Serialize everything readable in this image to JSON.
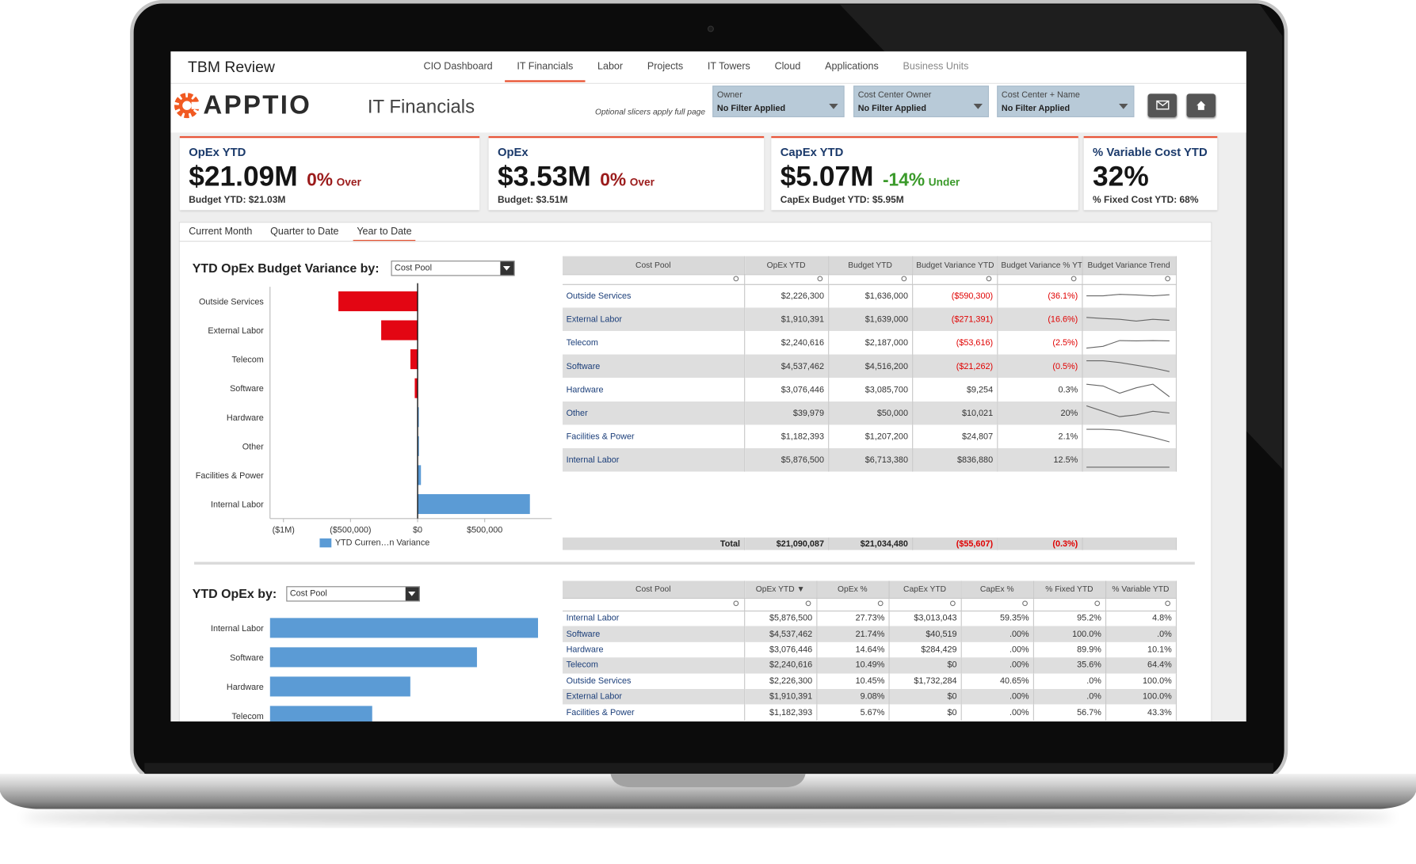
{
  "header": {
    "title": "TBM Review",
    "nav": [
      "CIO Dashboard",
      "IT Financials",
      "Labor",
      "Projects",
      "IT Towers",
      "Cloud",
      "Applications",
      "Business Units"
    ],
    "active_nav": 1
  },
  "branding": {
    "logo": "APPTIO",
    "page_title": "IT Financials"
  },
  "slicer_note": "Optional slicers apply full page",
  "slicers": [
    {
      "label": "Owner",
      "value": "No Filter Applied"
    },
    {
      "label": "Cost Center Owner",
      "value": "No Filter Applied"
    },
    {
      "label": "Cost Center + Name",
      "value": "No Filter Applied"
    }
  ],
  "kpis": [
    {
      "title": "OpEx YTD",
      "value": "$21.09M",
      "change": "0%",
      "change_label": "Over",
      "change_color": "#9b1b1b",
      "sub": "Budget YTD: $21.03M"
    },
    {
      "title": "OpEx",
      "value": "$3.53M",
      "change": "0%",
      "change_label": "Over",
      "change_color": "#9b1b1b",
      "sub": "Budget: $3.51M"
    },
    {
      "title": "CapEx YTD",
      "value": "$5.07M",
      "change": "-14%",
      "change_label": "Under",
      "change_color": "#3a9a2a",
      "sub": "CapEx Budget YTD: $5.95M"
    },
    {
      "title": "% Variable Cost YTD",
      "value": "32%",
      "sub": "% Fixed Cost YTD: 68%"
    }
  ],
  "tabs": {
    "items": [
      "Current Month",
      "Quarter to Date",
      "Year to Date"
    ],
    "active": 2
  },
  "variance_section": {
    "chart": {
      "type": "bar",
      "title": "YTD OpEx Budget Variance by:",
      "dropdown": "Cost Pool",
      "categories": [
        "Outside Services",
        "External Labor",
        "Telecom",
        "Software",
        "Hardware",
        "Other",
        "Facilities & Power",
        "Internal Labor"
      ],
      "series": [
        {
          "name": "YTD Curren…n Variance",
          "color": "#5b9bd5",
          "negative_color": "#e30613",
          "values": [
            -590300,
            -271391,
            -53616,
            -21262,
            9254,
            10021,
            24807,
            836880
          ]
        }
      ],
      "xlim": [
        -1100000,
        1000000
      ],
      "xticks": [
        {
          "value": -1000000,
          "label": "($1M)"
        },
        {
          "value": -500000,
          "label": "($500,000)"
        },
        {
          "value": 0,
          "label": "$0"
        },
        {
          "value": 500000,
          "label": "$500,000"
        }
      ]
    },
    "table": {
      "columns": [
        "Cost Pool",
        "OpEx YTD",
        "Budget YTD",
        "Budget Variance YTD ▲",
        "Budget Variance % YTD",
        "Budget Variance Trend"
      ],
      "rows": [
        [
          "Outside Services",
          "$2,226,300",
          "$1,636,000",
          "($590,300)",
          "(36.1%)"
        ],
        [
          "External Labor",
          "$1,910,391",
          "$1,639,000",
          "($271,391)",
          "(16.6%)"
        ],
        [
          "Telecom",
          "$2,240,616",
          "$2,187,000",
          "($53,616)",
          "(2.5%)"
        ],
        [
          "Software",
          "$4,537,462",
          "$4,516,200",
          "($21,262)",
          "(0.5%)"
        ],
        [
          "Hardware",
          "$3,076,446",
          "$3,085,700",
          "$9,254",
          "0.3%"
        ],
        [
          "Other",
          "$39,979",
          "$50,000",
          "$10,021",
          "20%"
        ],
        [
          "Facilities & Power",
          "$1,182,393",
          "$1,207,200",
          "$24,807",
          "2.1%"
        ],
        [
          "Internal Labor",
          "$5,876,500",
          "$6,713,380",
          "$836,880",
          "12.5%"
        ]
      ],
      "trends": [
        [
          5,
          5,
          5.8,
          5.5,
          5,
          5.6
        ],
        [
          6,
          5.4,
          5,
          4,
          5,
          4.4
        ],
        [
          2,
          3,
          6.2,
          6,
          6.2,
          6
        ],
        [
          8,
          8,
          7,
          5.5,
          4,
          2
        ],
        [
          8,
          7,
          3,
          6,
          8,
          1
        ],
        [
          9,
          6,
          3,
          4,
          6,
          5
        ],
        [
          9,
          9,
          8.5,
          6.5,
          4.5,
          2
        ],
        [
          1,
          1,
          1,
          1,
          1,
          1
        ]
      ],
      "total": [
        "Total",
        "$21,090,087",
        "$21,034,480",
        "($55,607)",
        "(0.3%)"
      ]
    }
  },
  "opex_section": {
    "chart": {
      "type": "bar",
      "title": "YTD OpEx by:",
      "dropdown": "Cost Pool",
      "categories": [
        "Internal Labor",
        "Software",
        "Hardware",
        "Telecom"
      ],
      "values": [
        5876500,
        4537462,
        3076446,
        2240616
      ],
      "color": "#5b9bd5",
      "xlim": [
        0,
        6000000
      ]
    },
    "table": {
      "columns": [
        "Cost Pool",
        "OpEx YTD ▼",
        "OpEx %",
        "CapEx YTD",
        "CapEx %",
        "% Fixed YTD",
        "% Variable YTD"
      ],
      "rows": [
        [
          "Internal Labor",
          "$5,876,500",
          "27.73%",
          "$3,013,043",
          "59.35%",
          "95.2%",
          "4.8%"
        ],
        [
          "Software",
          "$4,537,462",
          "21.74%",
          "$40,519",
          ".00%",
          "100.0%",
          ".0%"
        ],
        [
          "Hardware",
          "$3,076,446",
          "14.64%",
          "$284,429",
          ".00%",
          "89.9%",
          "10.1%"
        ],
        [
          "Telecom",
          "$2,240,616",
          "10.49%",
          "$0",
          ".00%",
          "35.6%",
          "64.4%"
        ],
        [
          "Outside Services",
          "$2,226,300",
          "10.45%",
          "$1,732,284",
          "40.65%",
          ".0%",
          "100.0%"
        ],
        [
          "External Labor",
          "$1,910,391",
          "9.08%",
          "$0",
          ".00%",
          ".0%",
          "100.0%"
        ],
        [
          "Facilities & Power",
          "$1,182,393",
          "5.67%",
          "$0",
          ".00%",
          "56.7%",
          "43.3%"
        ]
      ]
    }
  }
}
